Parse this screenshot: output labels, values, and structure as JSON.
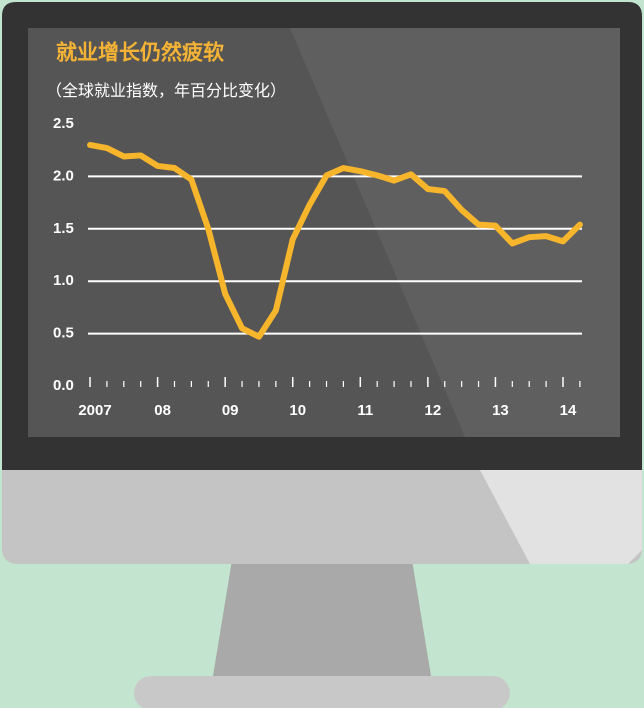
{
  "chart_data": {
    "type": "line",
    "title": "就业增长仍然疲软",
    "subtitle": "（全球就业指数，年百分比变化）",
    "x": [
      2007,
      2007.25,
      2007.5,
      2007.75,
      2008,
      2008.25,
      2008.5,
      2008.75,
      2009,
      2009.25,
      2009.5,
      2009.75,
      2010,
      2010.25,
      2010.5,
      2010.75,
      2011,
      2011.25,
      2011.5,
      2011.75,
      2012,
      2012.25,
      2012.5,
      2012.75,
      2013,
      2013.25,
      2013.5,
      2013.75,
      2014,
      2014.25
    ],
    "series": [
      {
        "color": "#f7b52c",
        "values": [
          2.3,
          2.27,
          2.19,
          2.2,
          2.1,
          2.08,
          1.97,
          1.5,
          0.88,
          0.55,
          0.47,
          0.72,
          1.4,
          1.73,
          2.01,
          2.08,
          2.05,
          2.01,
          1.96,
          2.02,
          1.88,
          1.86,
          1.68,
          1.54,
          1.53,
          1.36,
          1.42,
          1.43,
          1.38,
          1.54
        ]
      }
    ],
    "xlim": [
      2006.97,
      2014.37
    ],
    "xticks": [
      2007,
      {
        "value": 2008,
        "label": "08"
      },
      {
        "value": 2009,
        "label": "09"
      },
      {
        "value": 2010,
        "label": "10"
      },
      {
        "value": 2011,
        "label": "11"
      },
      {
        "value": 2012,
        "label": "12"
      },
      {
        "value": 2013,
        "label": "13"
      },
      {
        "value": 2014,
        "label": "14"
      }
    ],
    "ylim": [
      0,
      2.5
    ],
    "yticks": [
      {
        "value": 0,
        "label": "0.0"
      },
      0.5,
      {
        "value": 1,
        "label": "1.0"
      },
      1.5,
      {
        "value": 2,
        "label": "2.0"
      },
      2.5
    ],
    "grid": true
  }
}
